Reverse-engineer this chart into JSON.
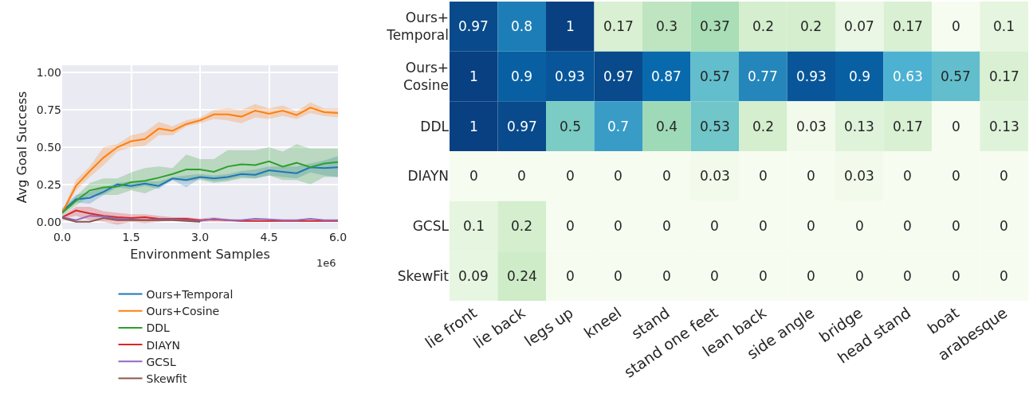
{
  "chart_data": [
    {
      "type": "line",
      "xlabel": "Environment Samples",
      "ylabel": "Avg Goal Success",
      "annotations": [
        "1e6"
      ],
      "x": [
        0,
        0.3,
        0.6,
        0.9,
        1.2,
        1.5,
        1.8,
        2.1,
        2.4,
        2.7,
        3.0,
        3.3,
        3.6,
        3.9,
        4.2,
        4.5,
        4.8,
        5.1,
        5.4,
        5.7,
        6.0
      ],
      "series": [
        {
          "name": "Ours+Temporal",
          "color": "#1f77b4",
          "values": [
            0.07,
            0.15,
            0.16,
            0.2,
            0.25,
            0.24,
            0.255,
            0.24,
            0.29,
            0.28,
            0.3,
            0.29,
            0.3,
            0.32,
            0.315,
            0.345,
            0.335,
            0.325,
            0.365,
            0.36,
            0.365
          ],
          "lower": [
            0.05,
            0.13,
            0.12,
            0.18,
            0.23,
            0.22,
            0.24,
            0.22,
            0.28,
            0.23,
            0.29,
            0.27,
            0.28,
            0.3,
            0.29,
            0.31,
            0.3,
            0.29,
            0.33,
            0.31,
            0.3
          ],
          "upper": [
            0.09,
            0.18,
            0.2,
            0.23,
            0.26,
            0.27,
            0.27,
            0.27,
            0.3,
            0.31,
            0.32,
            0.31,
            0.32,
            0.34,
            0.35,
            0.37,
            0.37,
            0.37,
            0.39,
            0.41,
            0.44
          ]
        },
        {
          "name": "Ours+Cosine",
          "color": "#ff7f0e",
          "values": [
            0.06,
            0.24,
            0.34,
            0.43,
            0.5,
            0.54,
            0.555,
            0.625,
            0.61,
            0.655,
            0.68,
            0.72,
            0.72,
            0.705,
            0.745,
            0.725,
            0.745,
            0.715,
            0.765,
            0.735,
            0.73
          ],
          "lower": [
            0.05,
            0.21,
            0.3,
            0.38,
            0.47,
            0.5,
            0.51,
            0.58,
            0.58,
            0.64,
            0.66,
            0.69,
            0.68,
            0.66,
            0.7,
            0.69,
            0.71,
            0.69,
            0.73,
            0.71,
            0.7
          ],
          "upper": [
            0.07,
            0.28,
            0.37,
            0.5,
            0.52,
            0.58,
            0.6,
            0.67,
            0.64,
            0.68,
            0.7,
            0.75,
            0.76,
            0.75,
            0.79,
            0.76,
            0.78,
            0.74,
            0.8,
            0.76,
            0.76
          ]
        },
        {
          "name": "DDL",
          "color": "#2ca02c",
          "values": [
            0.06,
            0.14,
            0.21,
            0.23,
            0.235,
            0.265,
            0.275,
            0.295,
            0.32,
            0.35,
            0.35,
            0.335,
            0.37,
            0.385,
            0.38,
            0.405,
            0.37,
            0.395,
            0.365,
            0.39,
            0.4
          ],
          "lower": [
            0.04,
            0.11,
            0.17,
            0.18,
            0.18,
            0.21,
            0.19,
            0.23,
            0.28,
            0.27,
            0.28,
            0.26,
            0.27,
            0.29,
            0.29,
            0.31,
            0.28,
            0.28,
            0.25,
            0.3,
            0.3
          ],
          "upper": [
            0.08,
            0.17,
            0.26,
            0.29,
            0.29,
            0.33,
            0.36,
            0.37,
            0.36,
            0.45,
            0.42,
            0.42,
            0.48,
            0.48,
            0.48,
            0.5,
            0.47,
            0.52,
            0.49,
            0.49,
            0.49
          ]
        },
        {
          "name": "DIAYN",
          "color": "#d62728",
          "values": [
            0.03,
            0.075,
            0.055,
            0.04,
            0.03,
            0.025,
            0.03,
            0.02,
            0.02,
            0.02,
            0.01,
            0.015,
            0.01,
            0.005,
            0.005,
            0.005,
            0.005,
            0.005,
            0.005,
            0.005,
            0.005
          ],
          "lower": [
            0.02,
            0.04,
            0.01,
            0.0,
            -0.02,
            0.0,
            -0.01,
            0.0,
            0.01,
            0.01,
            0.0,
            0.0,
            0.0,
            0.0,
            0.0,
            0.0,
            0.0,
            0.0,
            0.0,
            0.0,
            0.0
          ],
          "upper": [
            0.04,
            0.1,
            0.1,
            0.07,
            0.06,
            0.05,
            0.05,
            0.04,
            0.03,
            0.03,
            0.02,
            0.03,
            0.02,
            0.01,
            0.01,
            0.01,
            0.01,
            0.01,
            0.01,
            0.01,
            0.01
          ]
        },
        {
          "name": "GCSL",
          "color": "#9467bd",
          "values": [
            0.03,
            0.01,
            0.04,
            0.035,
            0.02,
            0.015,
            0.01,
            0.015,
            0.015,
            0.01,
            0.005,
            0.02,
            0.01,
            0.01,
            0.02,
            0.015,
            0.01,
            0.01,
            0.02,
            0.01,
            0.01
          ]
        },
        {
          "name": "Skewfit",
          "color": "#8c564b",
          "x": [
            0,
            0.3,
            0.6,
            0.9,
            1.2,
            1.5,
            1.8,
            2.1,
            2.4,
            2.7,
            3.0
          ],
          "values": [
            0.025,
            0,
            0,
            0.025,
            0.01,
            0.01,
            0.01,
            0.01,
            0.01,
            0.005,
            0
          ]
        }
      ],
      "xlim": [
        0,
        6
      ],
      "ylim": [
        -0.05,
        1.05
      ],
      "xticks": [
        {
          "value": 0,
          "label": "0.0"
        },
        1.5,
        {
          "value": 3,
          "label": "3.0"
        },
        4.5,
        {
          "value": 6,
          "label": "6.0"
        }
      ],
      "yticks": [
        {
          "value": 0,
          "label": "0.00"
        },
        0.25,
        {
          "value": 0.5,
          "label": "0.50"
        },
        0.75,
        {
          "value": 1,
          "label": "1.00"
        }
      ],
      "grid": true,
      "legend": "bottom"
    },
    {
      "type": "heatmap",
      "data_labels": true,
      "categories": [
        "lie front",
        "lie back",
        "legs up",
        "kneel",
        "stand",
        "stand one feet",
        "lean back",
        "side angle",
        "bridge",
        "head stand",
        "boat",
        "arabesque"
      ],
      "y_categories": [
        "Ours+Temporal",
        "Ours+Cosine",
        "DDL",
        "DIAYN",
        "GCSL",
        "SkewFit"
      ],
      "cells": [
        [
          0.97,
          0.8,
          1,
          0.17,
          0.3,
          0.37,
          0.2,
          0.2,
          0.07,
          0.17,
          0,
          0.1
        ],
        [
          1,
          0.9,
          0.93,
          0.97,
          0.87,
          0.57,
          0.77,
          0.93,
          0.9,
          0.63,
          0.57,
          0.17
        ],
        [
          1,
          0.97,
          0.5,
          0.7,
          0.4,
          0.53,
          0.2,
          0.03,
          0.13,
          0.17,
          0,
          0.13
        ],
        [
          0,
          0,
          0,
          0,
          0,
          0.03,
          0,
          0,
          0.03,
          0,
          0,
          0
        ],
        [
          0.1,
          0.2,
          0,
          0,
          0,
          0,
          0,
          0,
          0,
          0,
          0,
          0
        ],
        [
          0.09,
          0.24,
          0,
          0,
          0,
          0,
          0,
          0,
          0,
          0,
          0,
          0
        ]
      ]
    }
  ]
}
